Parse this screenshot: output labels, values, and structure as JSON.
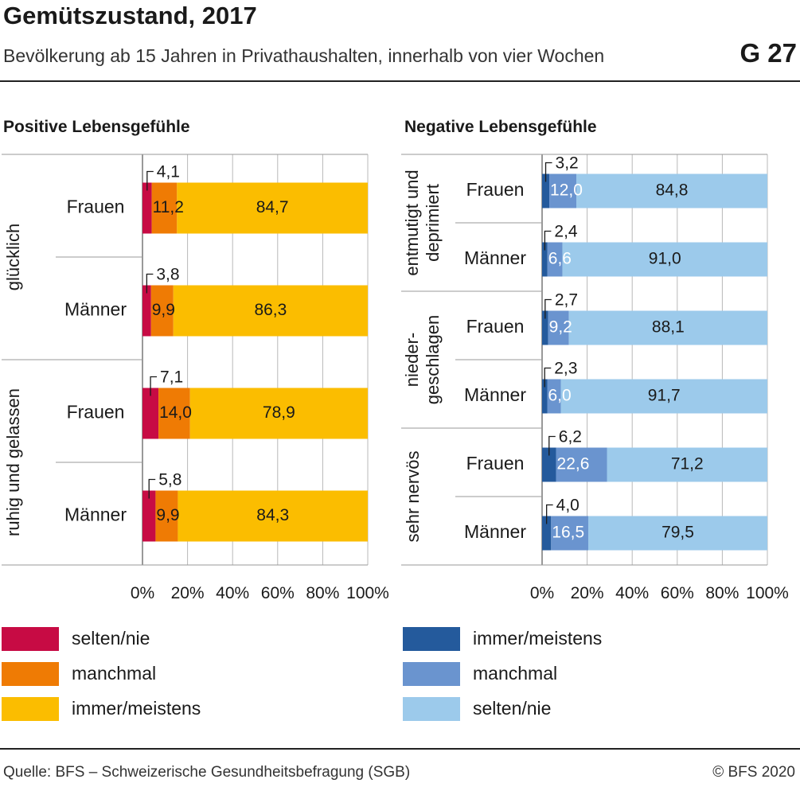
{
  "header": {
    "title": "Gemütszustand, 2017",
    "subtitle": "Bevölkerung ab 15 Jahren in Privathaushalten, innerhalb von vier Wochen",
    "figure_number": "G 27"
  },
  "footer": {
    "source": "Quelle: BFS – Schweizerische Gesundheitsbefragung (SGB)",
    "copyright": "© BFS 2020"
  },
  "colors": {
    "positive": [
      "#c70b44",
      "#ef7b04",
      "#fbbd00"
    ],
    "negative": [
      "#245a9c",
      "#6a94cf",
      "#9ccaeb"
    ]
  },
  "chart_data": [
    {
      "type": "bar",
      "orientation": "horizontal",
      "stacked": true,
      "title": "Positive Lebensgefühle",
      "x_ticks": [
        "0%",
        "20%",
        "40%",
        "60%",
        "80%",
        "100%"
      ],
      "xlim": [
        0,
        100
      ],
      "series": [
        {
          "name": "selten/nie",
          "color": "#c70b44"
        },
        {
          "name": "manchmal",
          "color": "#ef7b04"
        },
        {
          "name": "immer/meistens",
          "color": "#fbbd00"
        }
      ],
      "groups": [
        {
          "label": "glücklich",
          "bars": [
            {
              "label": "Frauen",
              "values": [
                4.1,
                11.2,
                84.7
              ],
              "text": [
                "4,1",
                "11,2",
                "84,7"
              ]
            },
            {
              "label": "Männer",
              "values": [
                3.8,
                9.9,
                86.3
              ],
              "text": [
                "3,8",
                "9,9",
                "86,3"
              ]
            }
          ]
        },
        {
          "label": "ruhig und gelassen",
          "bars": [
            {
              "label": "Frauen",
              "values": [
                7.1,
                14.0,
                78.9
              ],
              "text": [
                "7,1",
                "14,0",
                "78,9"
              ]
            },
            {
              "label": "Männer",
              "values": [
                5.8,
                9.9,
                84.3
              ],
              "text": [
                "5,8",
                "9,9",
                "84,3"
              ]
            }
          ]
        }
      ]
    },
    {
      "type": "bar",
      "orientation": "horizontal",
      "stacked": true,
      "title": "Negative Lebensgefühle",
      "x_ticks": [
        "0%",
        "20%",
        "40%",
        "60%",
        "80%",
        "100%"
      ],
      "xlim": [
        0,
        100
      ],
      "series": [
        {
          "name": "immer/meistens",
          "color": "#245a9c"
        },
        {
          "name": "manchmal",
          "color": "#6a94cf"
        },
        {
          "name": "selten/nie",
          "color": "#9ccaeb"
        }
      ],
      "groups": [
        {
          "label": [
            "entmutigt und",
            "deprimiert"
          ],
          "bars": [
            {
              "label": "Frauen",
              "values": [
                3.2,
                12.0,
                84.8
              ],
              "text": [
                "3,2",
                "12,0",
                "84,8"
              ]
            },
            {
              "label": "Männer",
              "values": [
                2.4,
                6.6,
                91.0
              ],
              "text": [
                "2,4",
                "6,6",
                "91,0"
              ]
            }
          ]
        },
        {
          "label": [
            "nieder-",
            "geschlagen"
          ],
          "bars": [
            {
              "label": "Frauen",
              "values": [
                2.7,
                9.2,
                88.1
              ],
              "text": [
                "2,7",
                "9,2",
                "88,1"
              ]
            },
            {
              "label": "Männer",
              "values": [
                2.3,
                6.0,
                91.7
              ],
              "text": [
                "2,3",
                "6,0",
                "91,7"
              ]
            }
          ]
        },
        {
          "label": "sehr nervös",
          "bars": [
            {
              "label": "Frauen",
              "values": [
                6.2,
                22.6,
                71.2
              ],
              "text": [
                "6,2",
                "22,6",
                "71,2"
              ]
            },
            {
              "label": "Männer",
              "values": [
                4.0,
                16.5,
                79.5
              ],
              "text": [
                "4,0",
                "16,5",
                "79,5"
              ]
            }
          ]
        }
      ]
    }
  ]
}
